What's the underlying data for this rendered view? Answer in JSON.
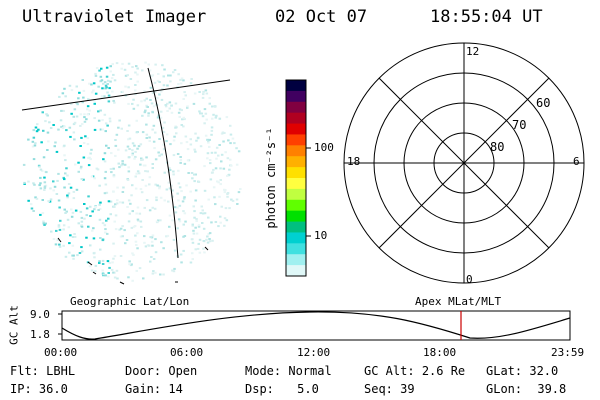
{
  "header": {
    "instrument": "Ultraviolet Imager",
    "date": "02 Oct 07",
    "time": "18:55:04 UT"
  },
  "colorbar": {
    "unit_label": "photon cm⁻²s⁻¹",
    "ticks": [
      "100",
      "10"
    ],
    "colors": [
      "#000040",
      "#400060",
      "#800040",
      "#b00020",
      "#e00000",
      "#ff4000",
      "#ff8000",
      "#ffb000",
      "#ffe000",
      "#ffff40",
      "#c0ff40",
      "#60ff00",
      "#00e000",
      "#00c080",
      "#00d0d0",
      "#40e0e0",
      "#a0f0f0",
      "#e0f8f8"
    ]
  },
  "polar_plot": {
    "mlt_labels": {
      "top": "12",
      "left": "18",
      "right": "6",
      "bottom": "0"
    },
    "lat_labels": [
      "60",
      "70",
      "80"
    ]
  },
  "labels": {
    "left_projection": "Geographic Lat/Lon",
    "right_projection": "Apex MLat/MLT"
  },
  "altitude_plot": {
    "axis_label": "GC Alt",
    "y_ticks": [
      "9.0",
      "1.8"
    ],
    "x_ticks": [
      "00:00",
      "06:00",
      "12:00",
      "18:00",
      "23:59"
    ],
    "current_marker_time": "18:55",
    "marker_color": "#cc0000"
  },
  "info_rows": [
    [
      {
        "key": "Flt:",
        "value": "LBHL"
      },
      {
        "key": "Door:",
        "value": "Open"
      },
      {
        "key": "Mode:",
        "value": "Normal"
      },
      {
        "key": "GC Alt:",
        "value": "2.6 Re"
      },
      {
        "key": "GLat:",
        "value": "32.0"
      }
    ],
    [
      {
        "key": "IP:",
        "value": "36.0"
      },
      {
        "key": "Gain:",
        "value": "14"
      },
      {
        "key": "Dsp:",
        "value": "5.0"
      },
      {
        "key": "Seq:",
        "value": "39"
      },
      {
        "key": "GLon:",
        "value": "39.8"
      }
    ]
  ]
}
